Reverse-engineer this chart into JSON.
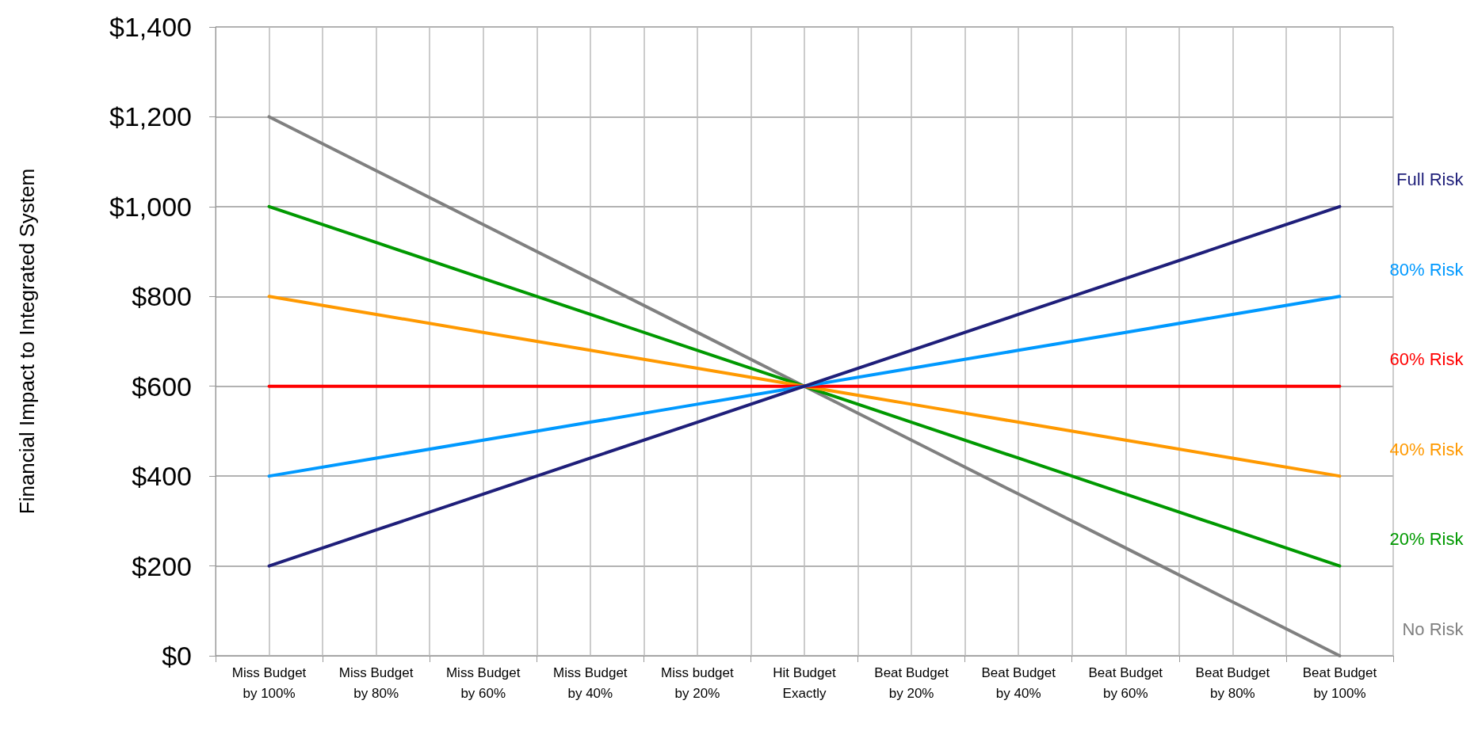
{
  "chart_data": {
    "type": "line",
    "ylabel": "Financial Impact to Integrated System",
    "categories": [
      "Miss Budget\nby 100%",
      "Miss Budget\nby 80%",
      "Miss Budget\nby 60%",
      "Miss Budget\nby 40%",
      "Miss budget\nby 20%",
      "Hit Budget\nExactly",
      "Beat Budget\nby 20%",
      "Beat Budget\nby 40%",
      "Beat Budget\nby 60%",
      "Beat Budget\nby 80%",
      "Beat Budget\nby 100%"
    ],
    "series": [
      {
        "name": "No Risk",
        "color": "#808080",
        "values": [
          1200,
          1080,
          960,
          840,
          720,
          600,
          480,
          360,
          240,
          120,
          0
        ]
      },
      {
        "name": "20% Risk",
        "color": "#009900",
        "values": [
          1000,
          920,
          840,
          760,
          680,
          600,
          520,
          440,
          360,
          280,
          200
        ]
      },
      {
        "name": "40% Risk",
        "color": "#ff9900",
        "values": [
          800,
          760,
          720,
          680,
          640,
          600,
          560,
          520,
          480,
          440,
          400
        ]
      },
      {
        "name": "60% Risk",
        "color": "#ff0000",
        "values": [
          600,
          600,
          600,
          600,
          600,
          600,
          600,
          600,
          600,
          600,
          600
        ]
      },
      {
        "name": "80% Risk",
        "color": "#0099ff",
        "values": [
          400,
          440,
          480,
          520,
          560,
          600,
          640,
          680,
          720,
          760,
          800
        ]
      },
      {
        "name": "Full Risk",
        "color": "#1f1f7a",
        "values": [
          200,
          280,
          360,
          440,
          520,
          600,
          680,
          760,
          840,
          920,
          1000
        ]
      }
    ],
    "ylim": [
      0,
      1400
    ],
    "yticks": [
      {
        "value": 0,
        "label": "$0"
      },
      {
        "value": 200,
        "label": "$200"
      },
      {
        "value": 400,
        "label": "$400"
      },
      {
        "value": 600,
        "label": "$600"
      },
      {
        "value": 800,
        "label": "$800"
      },
      {
        "value": 1000,
        "label": "$1,000"
      },
      {
        "value": 1200,
        "label": "$1,200"
      },
      {
        "value": 1400,
        "label": "$1,400"
      }
    ],
    "grid": true,
    "legend": false,
    "marker": "none",
    "line_style": "solid"
  }
}
